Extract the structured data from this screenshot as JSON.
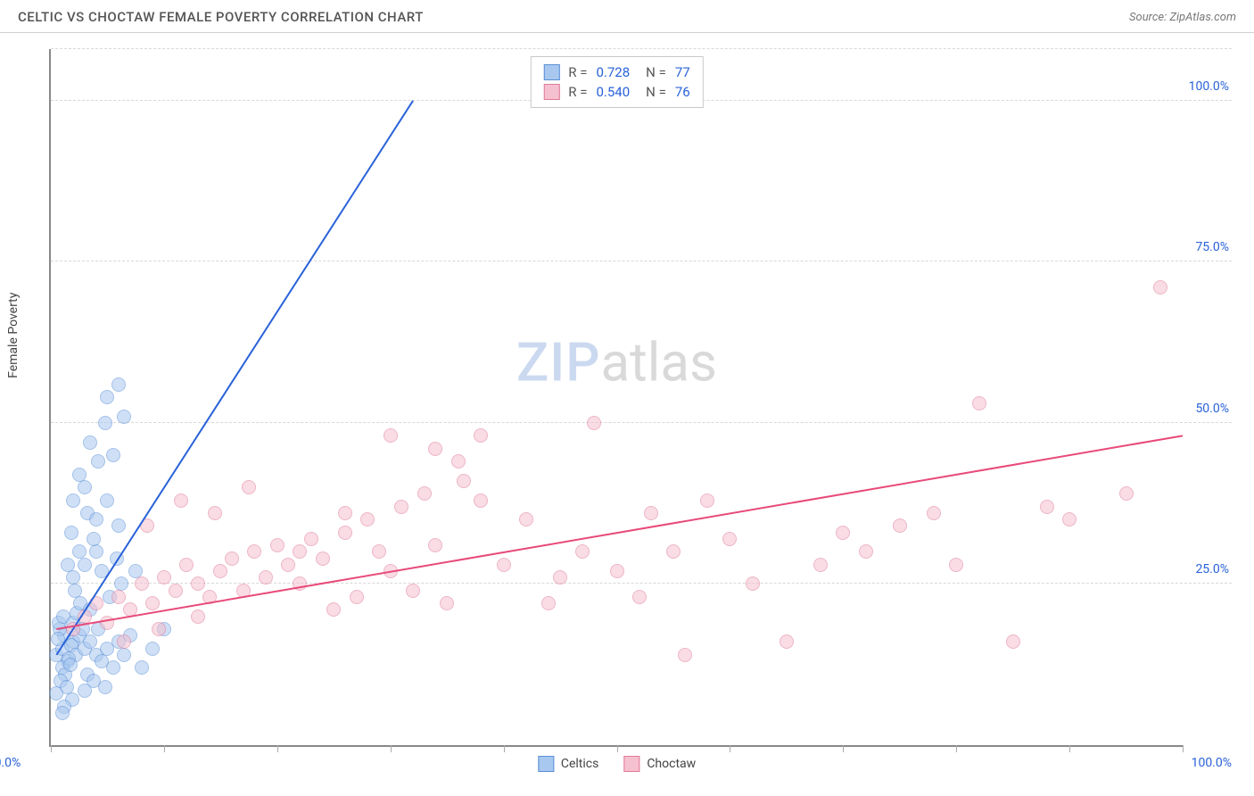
{
  "header": {
    "title": "CELTIC VS CHOCTAW FEMALE POVERTY CORRELATION CHART",
    "source_prefix": "Source: ",
    "source_name": "ZipAtlas.com"
  },
  "chart": {
    "type": "scatter",
    "y_axis_label": "Female Poverty",
    "xlim": [
      0,
      100
    ],
    "ylim": [
      0,
      108
    ],
    "x_ticks": [
      0,
      10,
      20,
      30,
      40,
      50,
      60,
      70,
      80,
      90,
      100
    ],
    "x_tick_labels": {
      "0": "0.0%",
      "100": "100.0%"
    },
    "y_gridlines": [
      25,
      50,
      75,
      100,
      108
    ],
    "y_tick_labels": {
      "25": "25.0%",
      "50": "50.0%",
      "75": "75.0%",
      "100": "100.0%"
    },
    "background_color": "#ffffff",
    "grid_color": "#d8d8d8",
    "axis_color": "#888888",
    "point_radius": 8,
    "point_opacity": 0.55,
    "series": [
      {
        "name": "Celtics",
        "fill_color": "#a8c8f0",
        "stroke_color": "#5b8fd6",
        "trend_color": "#2962d9",
        "R": "0.728",
        "N": "77",
        "trend": {
          "x1": 0.5,
          "y1": 14,
          "x2": 32,
          "y2": 100
        },
        "points": [
          [
            0.5,
            14
          ],
          [
            1,
            15
          ],
          [
            1.2,
            17
          ],
          [
            0.8,
            18
          ],
          [
            1.5,
            13
          ],
          [
            2,
            16
          ],
          [
            1,
            12
          ],
          [
            1.8,
            15.5
          ],
          [
            0.7,
            19
          ],
          [
            2.2,
            14
          ],
          [
            1.3,
            11
          ],
          [
            2.5,
            17
          ],
          [
            1.1,
            20
          ],
          [
            0.6,
            16.5
          ],
          [
            3,
            15
          ],
          [
            1.6,
            13.5
          ],
          [
            2.8,
            18
          ],
          [
            0.9,
            10
          ],
          [
            3.5,
            16
          ],
          [
            1.4,
            9
          ],
          [
            4,
            14
          ],
          [
            2,
            19
          ],
          [
            1.7,
            12.5
          ],
          [
            3.2,
            11
          ],
          [
            0.5,
            8
          ],
          [
            4.5,
            13
          ],
          [
            2.3,
            20.5
          ],
          [
            1.9,
            7
          ],
          [
            5,
            15
          ],
          [
            3.8,
            10
          ],
          [
            2.6,
            22
          ],
          [
            1.2,
            6
          ],
          [
            5.5,
            12
          ],
          [
            4.2,
            18
          ],
          [
            3,
            8.5
          ],
          [
            6,
            16
          ],
          [
            2.1,
            24
          ],
          [
            1,
            5
          ],
          [
            6.5,
            14
          ],
          [
            4.8,
            9
          ],
          [
            3.5,
            21
          ],
          [
            2,
            26
          ],
          [
            7,
            17
          ],
          [
            8,
            12
          ],
          [
            5.2,
            23
          ],
          [
            3,
            28
          ],
          [
            9,
            15
          ],
          [
            6.2,
            25
          ],
          [
            4,
            30
          ],
          [
            10,
            18
          ],
          [
            7.5,
            27
          ],
          [
            1.5,
            28
          ],
          [
            2.5,
            30
          ],
          [
            3.8,
            32
          ],
          [
            4.5,
            27
          ],
          [
            5.8,
            29
          ],
          [
            1.8,
            33
          ],
          [
            3.2,
            36
          ],
          [
            2,
            38
          ],
          [
            4,
            35
          ],
          [
            5,
            38
          ],
          [
            3,
            40
          ],
          [
            6,
            34
          ],
          [
            2.5,
            42
          ],
          [
            4.2,
            44
          ],
          [
            3.5,
            47
          ],
          [
            5.5,
            45
          ],
          [
            4.8,
            50
          ],
          [
            6.5,
            51
          ],
          [
            5,
            54
          ],
          [
            6,
            56
          ]
        ]
      },
      {
        "name": "Choctaw",
        "fill_color": "#f5c0cf",
        "stroke_color": "#e07a9a",
        "trend_color": "#e84a7a",
        "R": "0.540",
        "N": "76",
        "trend": {
          "x1": 0.5,
          "y1": 18,
          "x2": 100,
          "y2": 48
        },
        "points": [
          [
            2,
            18
          ],
          [
            3,
            20
          ],
          [
            4,
            22
          ],
          [
            5,
            19
          ],
          [
            6,
            23
          ],
          [
            7,
            21
          ],
          [
            8,
            25
          ],
          [
            9,
            22
          ],
          [
            10,
            26
          ],
          [
            11,
            24
          ],
          [
            12,
            28
          ],
          [
            13,
            25
          ],
          [
            14,
            23
          ],
          [
            15,
            27
          ],
          [
            16,
            29
          ],
          [
            17,
            24
          ],
          [
            18,
            30
          ],
          [
            19,
            26
          ],
          [
            20,
            31
          ],
          [
            21,
            28
          ],
          [
            22,
            25
          ],
          [
            23,
            32
          ],
          [
            24,
            29
          ],
          [
            25,
            21
          ],
          [
            26,
            33
          ],
          [
            27,
            23
          ],
          [
            28,
            35
          ],
          [
            29,
            30
          ],
          [
            30,
            27
          ],
          [
            31,
            37
          ],
          [
            32,
            24
          ],
          [
            33,
            39
          ],
          [
            34,
            31
          ],
          [
            35,
            22
          ],
          [
            36,
            44
          ],
          [
            36.5,
            41
          ],
          [
            38,
            48
          ],
          [
            40,
            28
          ],
          [
            42,
            35
          ],
          [
            45,
            26
          ],
          [
            47,
            30
          ],
          [
            48,
            50
          ],
          [
            50,
            27
          ],
          [
            52,
            23
          ],
          [
            53,
            36
          ],
          [
            55,
            30
          ],
          [
            56,
            14
          ],
          [
            58,
            38
          ],
          [
            60,
            32
          ],
          [
            62,
            25
          ],
          [
            65,
            16
          ],
          [
            68,
            28
          ],
          [
            70,
            33
          ],
          [
            72,
            30
          ],
          [
            75,
            34
          ],
          [
            78,
            36
          ],
          [
            80,
            28
          ],
          [
            82,
            53
          ],
          [
            85,
            16
          ],
          [
            88,
            37
          ],
          [
            90,
            35
          ],
          [
            95,
            39
          ],
          [
            98,
            71
          ],
          [
            8.5,
            34
          ],
          [
            11.5,
            38
          ],
          [
            14.5,
            36
          ],
          [
            17.5,
            40
          ],
          [
            6.5,
            16
          ],
          [
            9.5,
            18
          ],
          [
            13,
            20
          ],
          [
            22,
            30
          ],
          [
            26,
            36
          ],
          [
            30,
            48
          ],
          [
            34,
            46
          ],
          [
            38,
            38
          ],
          [
            44,
            22
          ]
        ]
      }
    ],
    "legend_top": {
      "r_label": "R =",
      "n_label": "N ="
    },
    "legend_bottom": [
      {
        "label": "Celtics",
        "fill": "#a8c8f0",
        "stroke": "#5b8fd6"
      },
      {
        "label": "Choctaw",
        "fill": "#f5c0cf",
        "stroke": "#e07a9a"
      }
    ],
    "watermark": {
      "zip": "ZIP",
      "atlas": "atlas"
    }
  }
}
